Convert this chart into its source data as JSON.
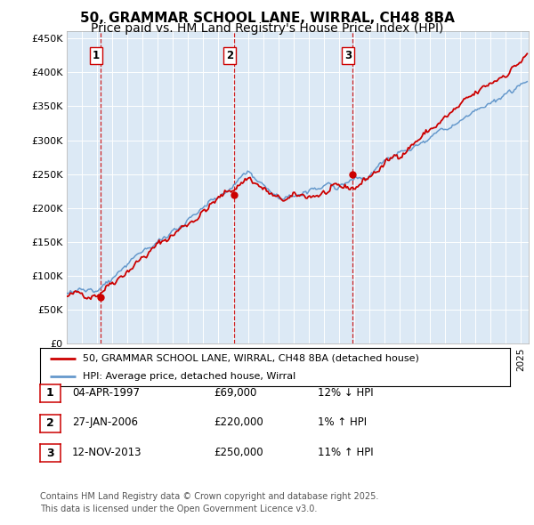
{
  "title": "50, GRAMMAR SCHOOL LANE, WIRRAL, CH48 8BA",
  "subtitle": "Price paid vs. HM Land Registry's House Price Index (HPI)",
  "legend_line1": "50, GRAMMAR SCHOOL LANE, WIRRAL, CH48 8BA (detached house)",
  "legend_line2": "HPI: Average price, detached house, Wirral",
  "ylabel_ticks": [
    "£0",
    "£50K",
    "£100K",
    "£150K",
    "£200K",
    "£250K",
    "£300K",
    "£350K",
    "£400K",
    "£450K"
  ],
  "ytick_values": [
    0,
    50000,
    100000,
    150000,
    200000,
    250000,
    300000,
    350000,
    400000,
    450000
  ],
  "xmin": 1995.0,
  "xmax": 2025.5,
  "ymin": 0,
  "ymax": 460000,
  "background_color": "#dce9f5",
  "red_line_color": "#cc0000",
  "blue_line_color": "#6699cc",
  "sale_dates": [
    1997.25,
    2006.07,
    2013.87
  ],
  "sale_prices": [
    69000,
    220000,
    250000
  ],
  "sale_labels": [
    "1",
    "2",
    "3"
  ],
  "table_data": [
    [
      "1",
      "04-APR-1997",
      "£69,000",
      "12% ↓ HPI"
    ],
    [
      "2",
      "27-JAN-2006",
      "£220,000",
      "1% ↑ HPI"
    ],
    [
      "3",
      "12-NOV-2013",
      "£250,000",
      "11% ↑ HPI"
    ]
  ],
  "footer_text": "Contains HM Land Registry data © Crown copyright and database right 2025.\nThis data is licensed under the Open Government Licence v3.0.",
  "title_fontsize": 11,
  "subtitle_fontsize": 10
}
